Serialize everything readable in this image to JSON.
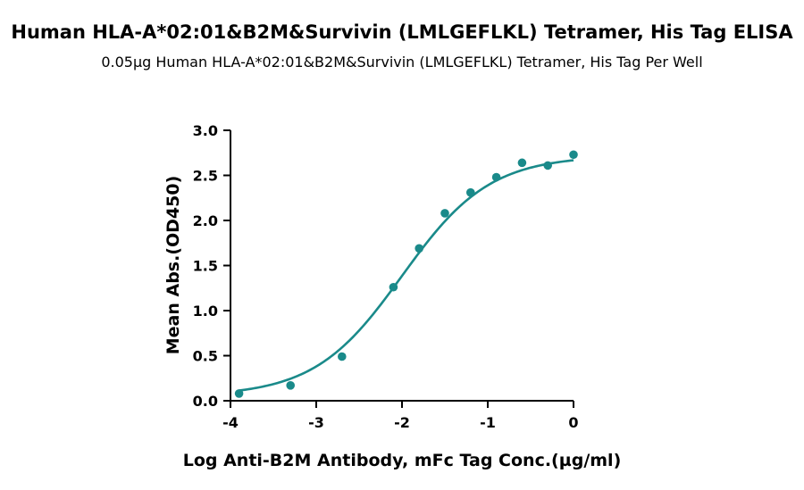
{
  "chart_data": {
    "type": "scatter",
    "title": "Human HLA-A*02:01&B2M&Survivin (LMLGEFLKL) Tetramer, His Tag ELISA",
    "subtitle": "0.05µg Human HLA-A*02:01&B2M&Survivin (LMLGEFLKL) Tetramer, His Tag Per Well",
    "xlabel": "Log Anti-B2M Antibody, mFc Tag Conc.(µg/ml)",
    "ylabel": "Mean Abs.(OD450)",
    "xlim": [
      -4,
      0
    ],
    "ylim": [
      0,
      3.0
    ],
    "xticks": [
      "-4",
      "-3",
      "-2",
      "-1",
      "0"
    ],
    "yticks": [
      "0.0",
      "0.5",
      "1.0",
      "1.5",
      "2.0",
      "2.5",
      "3.0"
    ],
    "grid": false,
    "legend": "none",
    "color": "#1a8a8a",
    "series": [
      {
        "x": [
          -3.9,
          -3.3,
          -2.7,
          -2.1,
          -1.8,
          -1.5,
          -1.2,
          -0.9,
          -0.6,
          -0.3,
          0.0
        ],
        "y": [
          0.08,
          0.17,
          0.49,
          1.26,
          1.69,
          2.08,
          2.31,
          2.48,
          2.64,
          2.61,
          2.73
        ],
        "fit": {
          "bottom": 0.05,
          "top": 2.72,
          "logEC50": -2.0,
          "hill": 0.85
        }
      }
    ]
  }
}
